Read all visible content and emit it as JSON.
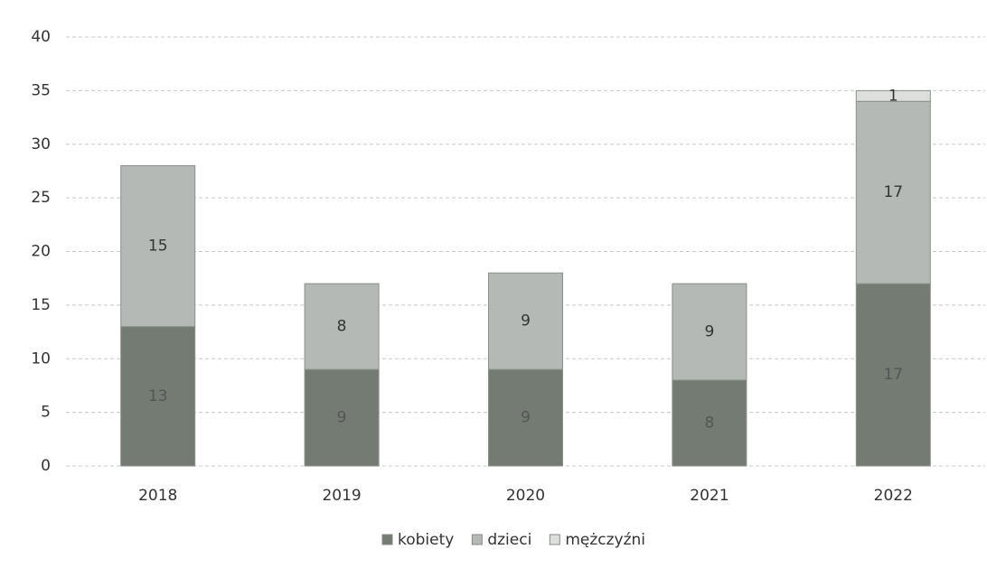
{
  "chart_data": {
    "type": "bar",
    "stacked": true,
    "categories": [
      "2018",
      "2019",
      "2020",
      "2021",
      "2022"
    ],
    "series": [
      {
        "name": "kobiety",
        "color": "#737b73",
        "values": [
          13,
          9,
          9,
          8,
          17
        ]
      },
      {
        "name": "dzieci",
        "color": "#b5b9b5",
        "values": [
          15,
          8,
          9,
          9,
          17
        ]
      },
      {
        "name": "mężczyźni",
        "color": "#dcdfdc",
        "values": [
          null,
          null,
          null,
          null,
          1
        ]
      }
    ],
    "ylim": [
      0,
      40
    ],
    "yticks": [
      0,
      5,
      10,
      15,
      20,
      25,
      30,
      35,
      40
    ],
    "grid": true,
    "legend": "bottom"
  }
}
